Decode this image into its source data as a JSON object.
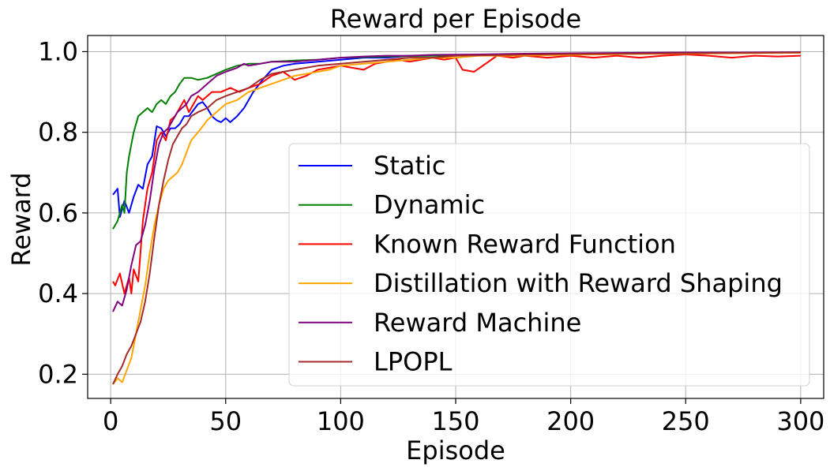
{
  "chart_data": {
    "type": "line",
    "title": "Reward per Episode",
    "xlabel": "Episode",
    "ylabel": "Reward",
    "xlim": [
      -10,
      310
    ],
    "ylim": [
      0.14,
      1.04
    ],
    "xticks": [
      0,
      50,
      100,
      150,
      200,
      250,
      300
    ],
    "yticks": [
      0.2,
      0.4,
      0.6,
      0.8,
      1.0
    ],
    "ytick_labels": [
      "0.2",
      "0.4",
      "0.6",
      "0.8",
      "1.0"
    ],
    "grid": true,
    "legend_position": "center-right",
    "series": [
      {
        "name": "Static",
        "color": "#0000ff",
        "points": [
          [
            1,
            0.645
          ],
          [
            3,
            0.66
          ],
          [
            4,
            0.59
          ],
          [
            6,
            0.63
          ],
          [
            8,
            0.6
          ],
          [
            10,
            0.64
          ],
          [
            12,
            0.67
          ],
          [
            14,
            0.66
          ],
          [
            16,
            0.72
          ],
          [
            18,
            0.74
          ],
          [
            20,
            0.815
          ],
          [
            22,
            0.81
          ],
          [
            24,
            0.79
          ],
          [
            26,
            0.81
          ],
          [
            28,
            0.81
          ],
          [
            30,
            0.82
          ],
          [
            32,
            0.84
          ],
          [
            34,
            0.84
          ],
          [
            36,
            0.855
          ],
          [
            38,
            0.87
          ],
          [
            40,
            0.875
          ],
          [
            42,
            0.86
          ],
          [
            44,
            0.84
          ],
          [
            46,
            0.83
          ],
          [
            48,
            0.825
          ],
          [
            50,
            0.835
          ],
          [
            52,
            0.825
          ],
          [
            55,
            0.84
          ],
          [
            58,
            0.86
          ],
          [
            62,
            0.9
          ],
          [
            66,
            0.93
          ],
          [
            70,
            0.955
          ],
          [
            75,
            0.965
          ],
          [
            80,
            0.97
          ],
          [
            90,
            0.975
          ],
          [
            100,
            0.98
          ],
          [
            110,
            0.985
          ],
          [
            120,
            0.985
          ],
          [
            130,
            0.99
          ],
          [
            140,
            0.99
          ],
          [
            150,
            0.99
          ],
          [
            175,
            0.993
          ],
          [
            200,
            0.995
          ],
          [
            225,
            0.996
          ],
          [
            250,
            0.997
          ],
          [
            275,
            0.998
          ],
          [
            300,
            0.998
          ]
        ]
      },
      {
        "name": "Dynamic",
        "color": "#008000",
        "points": [
          [
            1,
            0.56
          ],
          [
            3,
            0.58
          ],
          [
            5,
            0.62
          ],
          [
            6,
            0.6
          ],
          [
            7,
            0.7
          ],
          [
            8,
            0.74
          ],
          [
            9,
            0.77
          ],
          [
            10,
            0.8
          ],
          [
            11,
            0.82
          ],
          [
            12,
            0.84
          ],
          [
            14,
            0.85
          ],
          [
            16,
            0.86
          ],
          [
            18,
            0.85
          ],
          [
            20,
            0.87
          ],
          [
            22,
            0.88
          ],
          [
            24,
            0.87
          ],
          [
            26,
            0.89
          ],
          [
            28,
            0.9
          ],
          [
            30,
            0.92
          ],
          [
            32,
            0.935
          ],
          [
            35,
            0.935
          ],
          [
            38,
            0.93
          ],
          [
            42,
            0.935
          ],
          [
            46,
            0.945
          ],
          [
            50,
            0.955
          ],
          [
            55,
            0.965
          ],
          [
            60,
            0.97
          ],
          [
            65,
            0.97
          ],
          [
            70,
            0.975
          ],
          [
            80,
            0.978
          ],
          [
            90,
            0.98
          ],
          [
            100,
            0.985
          ],
          [
            120,
            0.988
          ],
          [
            140,
            0.99
          ],
          [
            160,
            0.992
          ],
          [
            180,
            0.994
          ],
          [
            200,
            0.995
          ],
          [
            225,
            0.996
          ],
          [
            250,
            0.997
          ],
          [
            275,
            0.998
          ],
          [
            300,
            0.998
          ]
        ]
      },
      {
        "name": "Known Reward Function",
        "color": "#ff0000",
        "points": [
          [
            1,
            0.43
          ],
          [
            2,
            0.42
          ],
          [
            4,
            0.45
          ],
          [
            6,
            0.4
          ],
          [
            8,
            0.44
          ],
          [
            9,
            0.4
          ],
          [
            10,
            0.46
          ],
          [
            12,
            0.43
          ],
          [
            14,
            0.58
          ],
          [
            16,
            0.66
          ],
          [
            18,
            0.7
          ],
          [
            20,
            0.78
          ],
          [
            22,
            0.8
          ],
          [
            24,
            0.78
          ],
          [
            26,
            0.83
          ],
          [
            28,
            0.84
          ],
          [
            30,
            0.86
          ],
          [
            32,
            0.88
          ],
          [
            34,
            0.85
          ],
          [
            36,
            0.87
          ],
          [
            38,
            0.89
          ],
          [
            40,
            0.88
          ],
          [
            44,
            0.9
          ],
          [
            48,
            0.9
          ],
          [
            52,
            0.91
          ],
          [
            56,
            0.9
          ],
          [
            60,
            0.91
          ],
          [
            65,
            0.92
          ],
          [
            70,
            0.94
          ],
          [
            75,
            0.95
          ],
          [
            80,
            0.93
          ],
          [
            85,
            0.94
          ],
          [
            90,
            0.955
          ],
          [
            95,
            0.96
          ],
          [
            100,
            0.965
          ],
          [
            105,
            0.96
          ],
          [
            110,
            0.955
          ],
          [
            115,
            0.97
          ],
          [
            120,
            0.975
          ],
          [
            125,
            0.98
          ],
          [
            130,
            0.975
          ],
          [
            135,
            0.98
          ],
          [
            140,
            0.985
          ],
          [
            145,
            0.98
          ],
          [
            150,
            0.985
          ],
          [
            153,
            0.955
          ],
          [
            158,
            0.95
          ],
          [
            163,
            0.97
          ],
          [
            168,
            0.99
          ],
          [
            175,
            0.985
          ],
          [
            180,
            0.99
          ],
          [
            190,
            0.985
          ],
          [
            200,
            0.99
          ],
          [
            210,
            0.985
          ],
          [
            220,
            0.99
          ],
          [
            230,
            0.985
          ],
          [
            240,
            0.99
          ],
          [
            250,
            0.993
          ],
          [
            260,
            0.99
          ],
          [
            270,
            0.985
          ],
          [
            280,
            0.99
          ],
          [
            290,
            0.988
          ],
          [
            300,
            0.99
          ]
        ]
      },
      {
        "name": "Distillation with Reward Shaping",
        "color": "#ffa500",
        "points": [
          [
            1,
            0.175
          ],
          [
            3,
            0.19
          ],
          [
            5,
            0.18
          ],
          [
            7,
            0.21
          ],
          [
            9,
            0.24
          ],
          [
            11,
            0.3
          ],
          [
            13,
            0.36
          ],
          [
            15,
            0.42
          ],
          [
            17,
            0.5
          ],
          [
            19,
            0.57
          ],
          [
            21,
            0.62
          ],
          [
            23,
            0.66
          ],
          [
            25,
            0.68
          ],
          [
            27,
            0.69
          ],
          [
            29,
            0.7
          ],
          [
            31,
            0.72
          ],
          [
            33,
            0.75
          ],
          [
            35,
            0.78
          ],
          [
            38,
            0.8
          ],
          [
            42,
            0.83
          ],
          [
            46,
            0.85
          ],
          [
            50,
            0.87
          ],
          [
            55,
            0.88
          ],
          [
            60,
            0.9
          ],
          [
            65,
            0.91
          ],
          [
            70,
            0.92
          ],
          [
            75,
            0.93
          ],
          [
            80,
            0.94
          ],
          [
            85,
            0.945
          ],
          [
            90,
            0.95
          ],
          [
            95,
            0.955
          ],
          [
            100,
            0.965
          ],
          [
            110,
            0.97
          ],
          [
            120,
            0.975
          ],
          [
            130,
            0.98
          ],
          [
            140,
            0.985
          ],
          [
            150,
            0.985
          ],
          [
            160,
            0.99
          ],
          [
            175,
            0.99
          ],
          [
            200,
            0.992
          ],
          [
            225,
            0.994
          ],
          [
            250,
            0.995
          ],
          [
            275,
            0.996
          ],
          [
            300,
            0.997
          ]
        ]
      },
      {
        "name": "Reward Machine",
        "color": "#800080",
        "points": [
          [
            1,
            0.355
          ],
          [
            3,
            0.38
          ],
          [
            5,
            0.37
          ],
          [
            7,
            0.41
          ],
          [
            9,
            0.47
          ],
          [
            11,
            0.52
          ],
          [
            13,
            0.53
          ],
          [
            15,
            0.57
          ],
          [
            17,
            0.63
          ],
          [
            19,
            0.71
          ],
          [
            21,
            0.77
          ],
          [
            23,
            0.8
          ],
          [
            25,
            0.81
          ],
          [
            27,
            0.83
          ],
          [
            29,
            0.85
          ],
          [
            31,
            0.86
          ],
          [
            33,
            0.87
          ],
          [
            35,
            0.89
          ],
          [
            38,
            0.9
          ],
          [
            42,
            0.92
          ],
          [
            46,
            0.94
          ],
          [
            50,
            0.95
          ],
          [
            55,
            0.96
          ],
          [
            58,
            0.97
          ],
          [
            60,
            0.965
          ],
          [
            65,
            0.97
          ],
          [
            70,
            0.975
          ],
          [
            80,
            0.975
          ],
          [
            90,
            0.98
          ],
          [
            100,
            0.985
          ],
          [
            110,
            0.988
          ],
          [
            120,
            0.99
          ],
          [
            130,
            0.99
          ],
          [
            140,
            0.992
          ],
          [
            160,
            0.993
          ],
          [
            180,
            0.995
          ],
          [
            200,
            0.996
          ],
          [
            225,
            0.997
          ],
          [
            250,
            0.998
          ],
          [
            275,
            0.998
          ],
          [
            300,
            0.999
          ]
        ]
      },
      {
        "name": "LPOPL",
        "color": "#a52a2a",
        "points": [
          [
            1,
            0.175
          ],
          [
            3,
            0.2
          ],
          [
            5,
            0.22
          ],
          [
            7,
            0.25
          ],
          [
            9,
            0.27
          ],
          [
            11,
            0.3
          ],
          [
            13,
            0.33
          ],
          [
            15,
            0.38
          ],
          [
            17,
            0.45
          ],
          [
            19,
            0.54
          ],
          [
            21,
            0.62
          ],
          [
            23,
            0.68
          ],
          [
            25,
            0.73
          ],
          [
            27,
            0.77
          ],
          [
            29,
            0.79
          ],
          [
            31,
            0.81
          ],
          [
            33,
            0.82
          ],
          [
            35,
            0.84
          ],
          [
            38,
            0.85
          ],
          [
            42,
            0.86
          ],
          [
            46,
            0.88
          ],
          [
            50,
            0.89
          ],
          [
            55,
            0.9
          ],
          [
            60,
            0.91
          ],
          [
            65,
            0.93
          ],
          [
            70,
            0.945
          ],
          [
            75,
            0.95
          ],
          [
            80,
            0.955
          ],
          [
            85,
            0.96
          ],
          [
            90,
            0.965
          ],
          [
            100,
            0.97
          ],
          [
            110,
            0.975
          ],
          [
            120,
            0.98
          ],
          [
            130,
            0.985
          ],
          [
            140,
            0.985
          ],
          [
            150,
            0.99
          ],
          [
            175,
            0.992
          ],
          [
            200,
            0.994
          ],
          [
            225,
            0.995
          ],
          [
            250,
            0.996
          ],
          [
            275,
            0.997
          ],
          [
            300,
            0.998
          ]
        ]
      }
    ]
  }
}
